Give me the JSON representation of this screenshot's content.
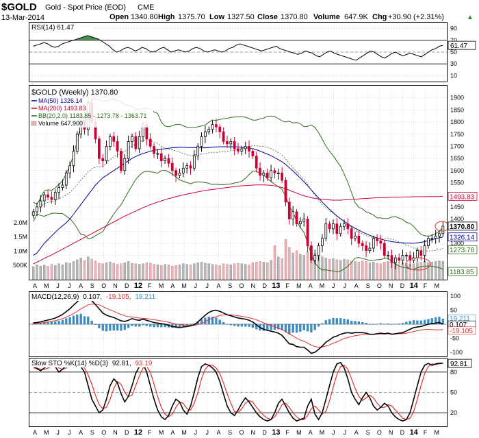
{
  "header": {
    "symbol": "$GOLD",
    "name": "Gold - Spot Price (EOD)",
    "exchange": "CME",
    "date": "13-Mar-2014",
    "open_label": "Open",
    "open": "1340.80",
    "high_label": "High",
    "high": "1375.70",
    "low_label": "Low",
    "low": "1327.50",
    "close_label": "Close",
    "close": "1370.80",
    "volume_label": "Volume",
    "volume": "647.9K",
    "chg_label": "Chg",
    "chg": "+30.90 (+2.31%)",
    "chg_arrow": "▲"
  },
  "colors": {
    "up": "#000000",
    "down": "#cc0033",
    "ma50": "#000099",
    "ma200": "#cc0033",
    "bb": "#2e6b1e",
    "rsi_fill": "#2e7d32",
    "macd_hist": "#3a8fc8",
    "signal": "#e03030",
    "grid": "#bbbbbb"
  },
  "chart_data": [
    {
      "type": "line",
      "panel": "RSI",
      "title": "RSI(14) 61.47",
      "value": 61.47,
      "ylim": [
        0,
        100
      ],
      "ticks": [
        10,
        30,
        50,
        70,
        90
      ],
      "ref_lines": [
        30,
        70
      ],
      "values": [
        60,
        62,
        64,
        66,
        64,
        60,
        58,
        60,
        64,
        66,
        68,
        70,
        72,
        74,
        76,
        78,
        76,
        74,
        72,
        68,
        64,
        60,
        54,
        50,
        52,
        56,
        58,
        56,
        52,
        54,
        58,
        56,
        52,
        50,
        52,
        56,
        58,
        54,
        50,
        52,
        54,
        52,
        50,
        52,
        56,
        58,
        56,
        52,
        50,
        52,
        54,
        52,
        50,
        52,
        56,
        58,
        62,
        64,
        62,
        60,
        58,
        56,
        54,
        52,
        54,
        56,
        58,
        60,
        56,
        54,
        52,
        50,
        48,
        46,
        48,
        52,
        50,
        48,
        44,
        42,
        46,
        50,
        52,
        48,
        46,
        44,
        42,
        40,
        38,
        36,
        40,
        44,
        48,
        52,
        50,
        46,
        42,
        40,
        44,
        48,
        50,
        46,
        44,
        46,
        48,
        46,
        44,
        42,
        46,
        50,
        54,
        56,
        60,
        61.47
      ]
    },
    {
      "type": "candlestick",
      "panel": "price",
      "title": "$GOLD (Weekly) 1370.80",
      "ylim": [
        1150,
        1950
      ],
      "ticks": [
        1200,
        1250,
        1300,
        1350,
        1400,
        1450,
        1500,
        1550,
        1600,
        1650,
        1700,
        1750,
        1800,
        1850,
        1900
      ],
      "legend": [
        {
          "label": "MA(50) 1326.14",
          "color": "#000099"
        },
        {
          "label": "MA(200) 1493.83",
          "color": "#cc0033"
        },
        {
          "label": "BB(20,2.0) 1183.85 - 1273.78 - 1363.71",
          "color": "#2e6b1e"
        },
        {
          "label": "Volume 647,900",
          "color": "#c08080"
        }
      ],
      "last_values": {
        "close": "1370.80",
        "ma200": "1493.83",
        "bb_upper": "1363.71",
        "ma50": "1326.14",
        "bb_mid": "1273.78",
        "bb_lower": "1183.85"
      },
      "close": [
        1430,
        1450,
        1475,
        1500,
        1490,
        1480,
        1510,
        1530,
        1540,
        1590,
        1620,
        1680,
        1750,
        1820,
        1770,
        1880,
        1800,
        1730,
        1650,
        1640,
        1700,
        1740,
        1720,
        1680,
        1600,
        1650,
        1720,
        1740,
        1690,
        1740,
        1790,
        1730,
        1700,
        1670,
        1670,
        1640,
        1650,
        1630,
        1600,
        1580,
        1590,
        1610,
        1620,
        1610,
        1660,
        1700,
        1740,
        1760,
        1770,
        1790,
        1780,
        1760,
        1720,
        1710,
        1720,
        1690,
        1680,
        1690,
        1700,
        1680,
        1660,
        1610,
        1580,
        1590,
        1570,
        1600,
        1590,
        1590,
        1560,
        1470,
        1400,
        1430,
        1380,
        1390,
        1400,
        1290,
        1230,
        1250,
        1290,
        1320,
        1380,
        1360,
        1380,
        1340,
        1370,
        1380,
        1360,
        1320,
        1330,
        1300,
        1290,
        1270,
        1280,
        1320,
        1310,
        1300,
        1250,
        1250,
        1220,
        1240,
        1230,
        1250,
        1250,
        1230,
        1240,
        1270,
        1250,
        1290,
        1320,
        1320,
        1330,
        1340,
        1370.8
      ],
      "ma50": [
        1250,
        1260,
        1280,
        1300,
        1315,
        1330,
        1345,
        1360,
        1372,
        1385,
        1400,
        1420,
        1440,
        1460,
        1480,
        1500,
        1520,
        1540,
        1555,
        1570,
        1580,
        1590,
        1600,
        1610,
        1620,
        1630,
        1640,
        1650,
        1658,
        1665,
        1670,
        1675,
        1680,
        1683,
        1686,
        1688,
        1690,
        1692,
        1694,
        1695,
        1696,
        1696,
        1695,
        1695,
        1695,
        1694,
        1694,
        1694,
        1695,
        1696,
        1697,
        1698,
        1698,
        1698,
        1698,
        1698,
        1697,
        1696,
        1694,
        1692,
        1690,
        1686,
        1680,
        1674,
        1668,
        1661,
        1653,
        1645,
        1636,
        1625,
        1612,
        1598,
        1584,
        1569,
        1554,
        1537,
        1520,
        1503,
        1487,
        1470,
        1455,
        1440,
        1426,
        1413,
        1401,
        1390,
        1380,
        1370,
        1362,
        1354,
        1346,
        1339,
        1333,
        1327,
        1322,
        1317,
        1313,
        1310,
        1307,
        1305,
        1303,
        1302,
        1301,
        1300,
        1300,
        1302,
        1304,
        1307,
        1311,
        1315,
        1319,
        1323,
        1326.14
      ],
      "ma200": [
        1215,
        1222,
        1230,
        1238,
        1245,
        1252,
        1260,
        1268,
        1276,
        1284,
        1292,
        1300,
        1308,
        1316,
        1324,
        1332,
        1340,
        1348,
        1356,
        1364,
        1372,
        1380,
        1388,
        1396,
        1404,
        1412,
        1419,
        1426,
        1433,
        1440,
        1447,
        1453,
        1459,
        1465,
        1470,
        1475,
        1480,
        1484,
        1488,
        1492,
        1496,
        1500,
        1503,
        1506,
        1509,
        1512,
        1515,
        1518,
        1520,
        1522,
        1524,
        1526,
        1528,
        1530,
        1532,
        1534,
        1536,
        1537,
        1538,
        1539,
        1540,
        1541,
        1541,
        1541,
        1540,
        1539,
        1537,
        1534,
        1530,
        1525,
        1519,
        1513,
        1507,
        1501,
        1496,
        1492,
        1488,
        1485,
        1483,
        1481,
        1480,
        1479,
        1478,
        1478,
        1478,
        1479,
        1480,
        1481,
        1482,
        1483,
        1484,
        1485,
        1486,
        1487,
        1488,
        1488,
        1489,
        1489,
        1490,
        1490,
        1490,
        1491,
        1491,
        1491,
        1492,
        1492,
        1492,
        1492,
        1493,
        1493,
        1493,
        1493,
        1493.83
      ],
      "volume": [
        460000,
        520000,
        480000,
        510000,
        470000,
        540000,
        500000,
        560000,
        520000,
        600000,
        580000,
        640000,
        700000,
        760000,
        680000,
        800000,
        720000,
        660000,
        580000,
        560000,
        600000,
        620000,
        580000,
        540000,
        560000,
        600000,
        640000,
        580000,
        560000,
        540000,
        560000,
        600000,
        580000,
        540000,
        520000,
        500000,
        540000,
        520000,
        480000,
        500000,
        520000,
        560000,
        540000,
        520000,
        560000,
        600000,
        620000,
        580000,
        560000,
        540000,
        520000,
        500000,
        560000,
        540000,
        520000,
        560000,
        580000,
        560000,
        540000,
        520000,
        600000,
        620000,
        640000,
        620000,
        600000,
        680000,
        1200000,
        800000,
        740000,
        1420000,
        1140000,
        940000,
        1020000,
        900000,
        860000,
        980000,
        1100000,
        920000,
        840000,
        800000,
        760000,
        720000,
        740000,
        700000,
        680000,
        720000,
        700000,
        660000,
        640000,
        620000,
        660000,
        640000,
        600000,
        620000,
        580000,
        560000,
        620000,
        640000,
        600000,
        580000,
        560000,
        600000,
        580000,
        540000,
        560000,
        600000,
        620000,
        640000,
        600000,
        620000,
        640000,
        660000,
        647900
      ],
      "volume_ticks": [
        "500K",
        "1.0M",
        "1.5M",
        "2.0M"
      ],
      "xticks": [
        "A",
        "M",
        "J",
        "J",
        "A",
        "S",
        "O",
        "N",
        "D",
        "12",
        "F",
        "M",
        "A",
        "M",
        "J",
        "J",
        "A",
        "S",
        "O",
        "N",
        "D",
        "13",
        "F",
        "M",
        "A",
        "M",
        "J",
        "J",
        "A",
        "S",
        "O",
        "N",
        "D",
        "14",
        "F",
        "M"
      ]
    },
    {
      "type": "line",
      "panel": "MACD",
      "title": "MACD(12,26,9) 0.107, -19.105, 19.211",
      "legend": [
        {
          "label": "MACD(12,26,9)",
          "color": "#000000"
        },
        {
          "label": "0.107,",
          "color": "#000000"
        },
        {
          "label": "-19.105,",
          "color": "#e03030"
        },
        {
          "label": "19.211",
          "color": "#3a8fc8"
        }
      ],
      "ylim": [
        -110,
        110
      ],
      "ticks": [
        -100,
        -50,
        0,
        50,
        100
      ],
      "right_labels": [
        "19.211",
        "0.107",
        "-19.105"
      ],
      "macd": [
        5,
        6,
        8,
        12,
        15,
        18,
        22,
        28,
        35,
        45,
        55,
        68,
        80,
        92,
        90,
        96,
        84,
        70,
        55,
        40,
        32,
        28,
        24,
        18,
        12,
        10,
        14,
        20,
        16,
        14,
        18,
        14,
        10,
        6,
        4,
        2,
        0,
        -4,
        -8,
        -10,
        -12,
        -10,
        -8,
        -6,
        -2,
        8,
        20,
        32,
        42,
        48,
        50,
        46,
        40,
        34,
        30,
        26,
        22,
        20,
        18,
        14,
        8,
        -2,
        -12,
        -18,
        -22,
        -25,
        -28,
        -32,
        -40,
        -55,
        -70,
        -72,
        -80,
        -82,
        -82,
        -92,
        -104,
        -100,
        -90,
        -78,
        -64,
        -56,
        -46,
        -42,
        -36,
        -32,
        -30,
        -32,
        -30,
        -30,
        -30,
        -32,
        -36,
        -36,
        -34,
        -32,
        -34,
        -32,
        -36,
        -34,
        -32,
        -30,
        -24,
        -18,
        -12,
        -10,
        -8,
        -4,
        0,
        2,
        4,
        6,
        0.107
      ],
      "signal": [
        2,
        3,
        4,
        6,
        8,
        10,
        13,
        16,
        20,
        25,
        31,
        38,
        46,
        55,
        62,
        69,
        72,
        72,
        69,
        63,
        57,
        51,
        46,
        40,
        35,
        30,
        27,
        26,
        24,
        22,
        21,
        20,
        18,
        16,
        14,
        12,
        10,
        7,
        4,
        1,
        -1,
        -3,
        -4,
        -4,
        -4,
        -1,
        3,
        9,
        16,
        22,
        27,
        31,
        33,
        34,
        33,
        32,
        30,
        28,
        26,
        23,
        20,
        16,
        10,
        5,
        0,
        -5,
        -9,
        -14,
        -19,
        -26,
        -35,
        -42,
        -50,
        -56,
        -61,
        -67,
        -75,
        -80,
        -82,
        -81,
        -78,
        -74,
        -68,
        -63,
        -57,
        -51,
        -47,
        -44,
        -41,
        -39,
        -37,
        -36,
        -36,
        -36,
        -35,
        -35,
        -35,
        -34,
        -35,
        -35,
        -34,
        -34,
        -32,
        -29,
        -26,
        -23,
        -21,
        -19,
        -18,
        -19,
        -20,
        -20,
        -19.105
      ]
    },
    {
      "type": "line",
      "panel": "Slow STO",
      "title": "Slow STO %K(14) %D(3) 92.81, 93.19",
      "legend": [
        {
          "label": "Slow STO %K(14) %D(3)",
          "color": "#000000"
        },
        {
          "label": "92.81,",
          "color": "#000000"
        },
        {
          "label": "93.19",
          "color": "#e03030"
        }
      ],
      "ylim": [
        0,
        100
      ],
      "ticks": [
        20,
        50,
        80
      ],
      "right_labels": [
        "92.81"
      ],
      "k": [
        88,
        85,
        82,
        86,
        90,
        92,
        88,
        80,
        84,
        90,
        94,
        92,
        90,
        88,
        80,
        60,
        40,
        30,
        20,
        24,
        40,
        60,
        70,
        64,
        48,
        36,
        44,
        60,
        78,
        88,
        92,
        80,
        60,
        40,
        24,
        14,
        10,
        16,
        30,
        40,
        36,
        24,
        18,
        30,
        50,
        72,
        88,
        92,
        90,
        86,
        80,
        66,
        48,
        30,
        20,
        16,
        24,
        34,
        42,
        36,
        28,
        20,
        14,
        10,
        8,
        10,
        20,
        34,
        40,
        30,
        20,
        12,
        8,
        10,
        12,
        30,
        40,
        18,
        10,
        20,
        40,
        60,
        80,
        92,
        94,
        86,
        70,
        50,
        40,
        32,
        42,
        50,
        42,
        30,
        24,
        28,
        34,
        30,
        20,
        14,
        10,
        8,
        10,
        20,
        40,
        60,
        80,
        90,
        92.81,
        90,
        92,
        93,
        92.81
      ],
      "d": [
        86,
        86,
        84,
        84,
        86,
        88,
        90,
        86,
        84,
        86,
        90,
        92,
        92,
        90,
        86,
        76,
        62,
        46,
        32,
        26,
        28,
        40,
        56,
        66,
        62,
        50,
        44,
        46,
        60,
        74,
        86,
        88,
        80,
        62,
        44,
        28,
        18,
        14,
        18,
        28,
        36,
        34,
        26,
        24,
        34,
        50,
        70,
        84,
        90,
        90,
        86,
        78,
        64,
        48,
        34,
        22,
        20,
        26,
        34,
        38,
        36,
        28,
        22,
        16,
        12,
        10,
        14,
        22,
        32,
        34,
        28,
        20,
        14,
        10,
        10,
        16,
        26,
        30,
        24,
        18,
        22,
        38,
        58,
        76,
        88,
        90,
        84,
        70,
        56,
        44,
        38,
        42,
        46,
        42,
        34,
        28,
        28,
        32,
        30,
        24,
        18,
        12,
        10,
        12,
        22,
        40,
        60,
        78,
        88,
        92,
        91,
        92,
        93.19
      ],
      "xticks": [
        "A",
        "M",
        "J",
        "J",
        "A",
        "S",
        "O",
        "N",
        "D",
        "12",
        "F",
        "M",
        "A",
        "M",
        "J",
        "J",
        "A",
        "S",
        "O",
        "N",
        "D",
        "13",
        "F",
        "M",
        "A",
        "M",
        "J",
        "J",
        "A",
        "S",
        "O",
        "N",
        "D",
        "14",
        "F",
        "M"
      ]
    }
  ]
}
